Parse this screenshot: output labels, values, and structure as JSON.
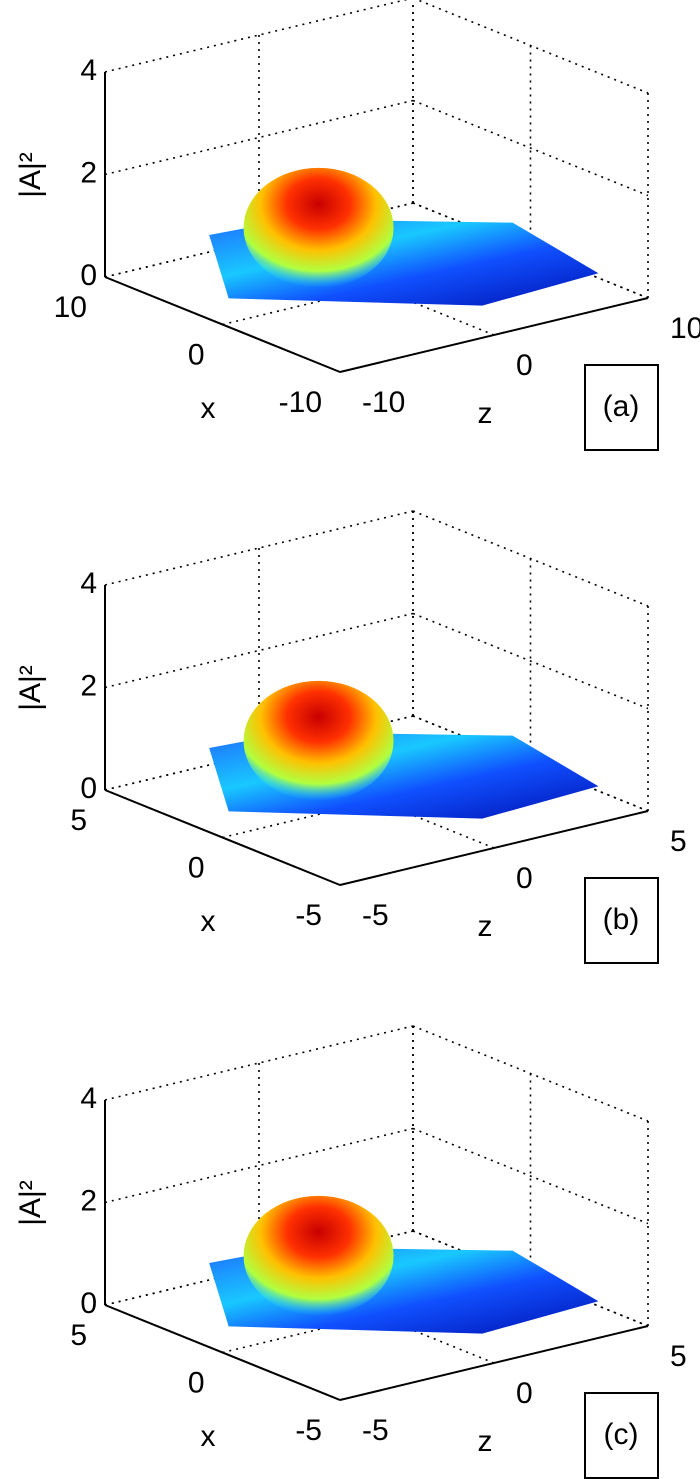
{
  "chart_data": [
    {
      "type": "surface",
      "panel_label": "(a)",
      "xlabel": "x",
      "ylabel": "z",
      "zlabel": "|A|²",
      "xlim": [
        -10,
        10
      ],
      "xticks": [
        -10,
        0,
        10
      ],
      "ylim": [
        -10,
        10
      ],
      "yticks": [
        -10,
        0,
        10
      ],
      "zlim": [
        0,
        4
      ],
      "zticks": [
        0,
        2,
        4
      ],
      "grid": true
    },
    {
      "type": "surface",
      "panel_label": "(b)",
      "xlabel": "x",
      "ylabel": "z",
      "zlabel": "|A|²",
      "xlim": [
        -5,
        5
      ],
      "xticks": [
        -5,
        0,
        5
      ],
      "ylim": [
        -5,
        5
      ],
      "yticks": [
        -5,
        0,
        5
      ],
      "zlim": [
        0,
        4
      ],
      "zticks": [
        0,
        2,
        4
      ],
      "grid": true
    },
    {
      "type": "surface",
      "panel_label": "(c)",
      "xlabel": "x",
      "ylabel": "z",
      "zlabel": "|A|²",
      "xlim": [
        -5,
        5
      ],
      "xticks": [
        -5,
        0,
        5
      ],
      "ylim": [
        -5,
        5
      ],
      "yticks": [
        -5,
        0,
        5
      ],
      "zlim": [
        0,
        4
      ],
      "zticks": [
        0,
        2,
        4
      ],
      "grid": true
    }
  ]
}
